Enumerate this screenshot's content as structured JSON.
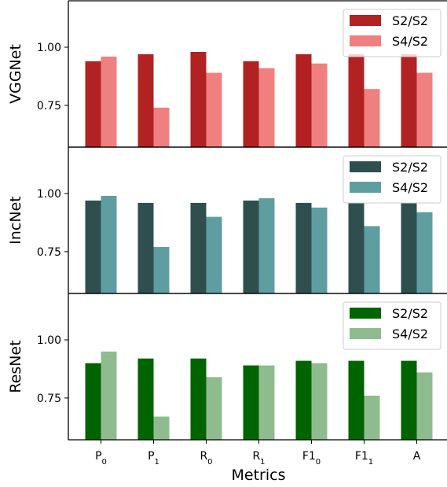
{
  "chart_data": [
    {
      "type": "bar",
      "ylabel": "VGGNet",
      "categories": [
        "P0",
        "P1",
        "R0",
        "R1",
        "F10",
        "F11",
        "A"
      ],
      "ylim": [
        0.57,
        1.2
      ],
      "yticks": [
        "0.75",
        "1.00"
      ],
      "ytick_values": [
        0.75,
        1.0
      ],
      "legend_position": "top-right",
      "series": [
        {
          "name": "S2/S2",
          "color": "#b22222",
          "values": [
            0.94,
            0.97,
            0.98,
            0.94,
            0.97,
            0.97,
            0.97
          ]
        },
        {
          "name": "S4/S2",
          "color": "#f08080",
          "values": [
            0.96,
            0.74,
            0.89,
            0.91,
            0.93,
            0.82,
            0.89
          ]
        }
      ]
    },
    {
      "type": "bar",
      "ylabel": "IncNet",
      "categories": [
        "P0",
        "P1",
        "R0",
        "R1",
        "F10",
        "F11",
        "A"
      ],
      "ylim": [
        0.57,
        1.2
      ],
      "yticks": [
        "0.75",
        "1.00"
      ],
      "ytick_values": [
        0.75,
        1.0
      ],
      "legend_position": "top-right",
      "series": [
        {
          "name": "S2/S2",
          "color": "#2f4f4f",
          "values": [
            0.97,
            0.96,
            0.96,
            0.97,
            0.96,
            0.96,
            0.96
          ]
        },
        {
          "name": "S4/S2",
          "color": "#5f9ea0",
          "values": [
            0.99,
            0.77,
            0.9,
            0.98,
            0.94,
            0.86,
            0.92
          ]
        }
      ]
    },
    {
      "type": "bar",
      "ylabel": "ResNet",
      "xlabel": "Metrics",
      "categories": [
        "P0",
        "P1",
        "R0",
        "R1",
        "F10",
        "F11",
        "A"
      ],
      "ylim": [
        0.57,
        1.2
      ],
      "yticks": [
        "0.75",
        "1.00"
      ],
      "ytick_values": [
        0.75,
        1.0
      ],
      "legend_position": "top-right",
      "series": [
        {
          "name": "S2/S2",
          "color": "#006400",
          "values": [
            0.9,
            0.92,
            0.92,
            0.89,
            0.91,
            0.91,
            0.91
          ]
        },
        {
          "name": "S4/S2",
          "color": "#8fbc8f",
          "values": [
            0.95,
            0.67,
            0.84,
            0.89,
            0.9,
            0.76,
            0.86
          ]
        }
      ]
    }
  ],
  "x_tick_labels": [
    {
      "base": "P",
      "sub": "0"
    },
    {
      "base": "P",
      "sub": "1"
    },
    {
      "base": "R",
      "sub": "0"
    },
    {
      "base": "R",
      "sub": "1"
    },
    {
      "base": "F1",
      "sub": "0"
    },
    {
      "base": "F1",
      "sub": "1"
    },
    {
      "base": "A",
      "sub": ""
    }
  ],
  "xlabel": "Metrics"
}
